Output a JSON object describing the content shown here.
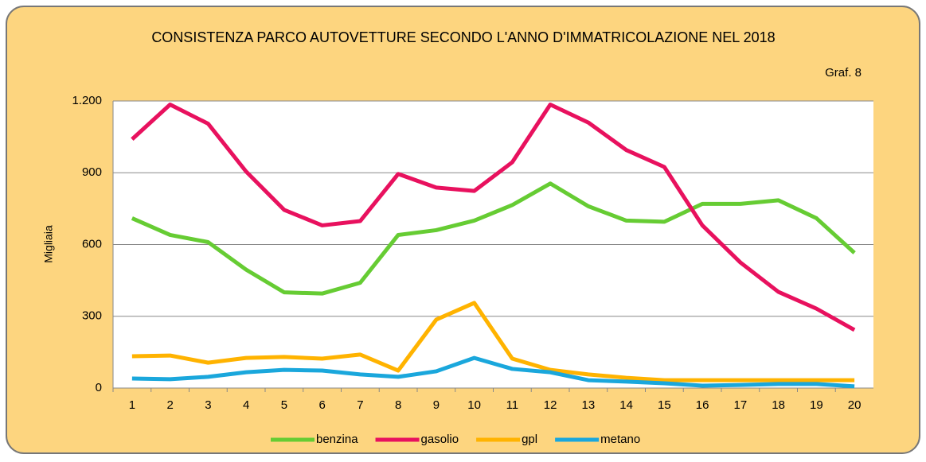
{
  "chart_data": {
    "type": "line",
    "title": "CONSISTENZA PARCO AUTOVETTURE SECONDO L'ANNO D'IMMATRICOLAZIONE NEL 2018",
    "annotation": "Graf. 8",
    "y_label": "Migliaia",
    "categories": [
      "1",
      "2",
      "3",
      "4",
      "5",
      "6",
      "7",
      "8",
      "9",
      "10",
      "11",
      "12",
      "13",
      "14",
      "15",
      "16",
      "17",
      "18",
      "19",
      "20"
    ],
    "series": [
      {
        "name": "benzina",
        "color": "#66cc33",
        "values": [
          710,
          640,
          610,
          495,
          400,
          395,
          440,
          640,
          660,
          700,
          765,
          855,
          760,
          700,
          695,
          770,
          770,
          785,
          710,
          565
        ]
      },
      {
        "name": "gasolio",
        "color": "#e8115e",
        "values": [
          1040,
          1185,
          1105,
          905,
          745,
          680,
          698,
          895,
          838,
          824,
          944,
          1185,
          1110,
          995,
          924,
          680,
          525,
          402,
          332,
          243
        ]
      },
      {
        "name": "gpl",
        "color": "#ffb300",
        "values": [
          133,
          136,
          106,
          126,
          130,
          123,
          140,
          73,
          286,
          356,
          123,
          76,
          57,
          43,
          33,
          33,
          33,
          33,
          33,
          33
        ]
      },
      {
        "name": "metano",
        "color": "#1aa7dc",
        "values": [
          40,
          37,
          47,
          66,
          76,
          73,
          57,
          47,
          70,
          126,
          80,
          66,
          33,
          27,
          20,
          10,
          13,
          17,
          17,
          7
        ]
      }
    ],
    "ylim": [
      0,
      1200
    ],
    "yticks": [
      0,
      300,
      600,
      900,
      {
        "value": 1200,
        "label": "1.200"
      }
    ],
    "grid": true,
    "legend": "bottom"
  }
}
